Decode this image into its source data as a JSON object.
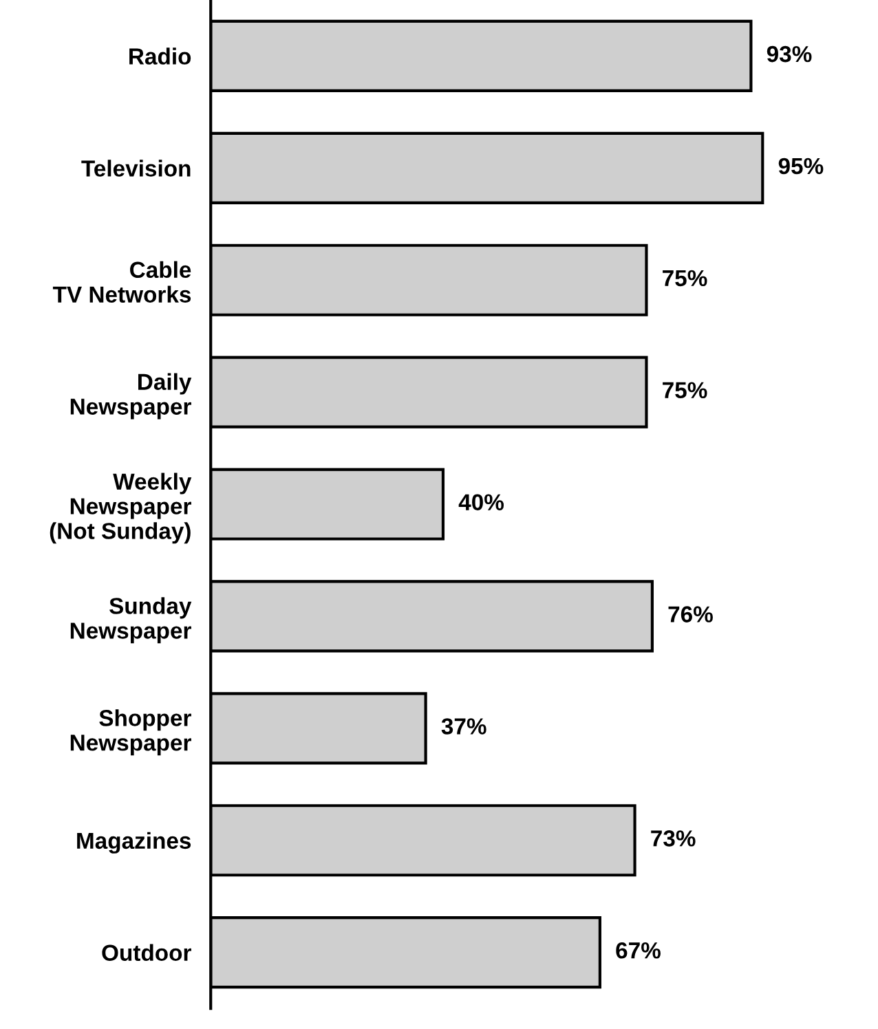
{
  "chart_data": {
    "type": "bar",
    "orientation": "horizontal",
    "categories": [
      "Radio",
      "Television",
      "Cable\nTV Networks",
      "Daily\nNewspaper",
      "Weekly\nNewspaper\n(Not Sunday)",
      "Sunday\nNewspaper",
      "Shopper\nNewspaper",
      "Magazines",
      "Outdoor"
    ],
    "values": [
      93,
      95,
      75,
      75,
      40,
      76,
      37,
      73,
      67
    ],
    "value_labels": [
      "93%",
      "95%",
      "75%",
      "75%",
      "40%",
      "76%",
      "37%",
      "73%",
      "67%"
    ],
    "color": "#cfcfcf",
    "grid": false,
    "legend": false
  }
}
